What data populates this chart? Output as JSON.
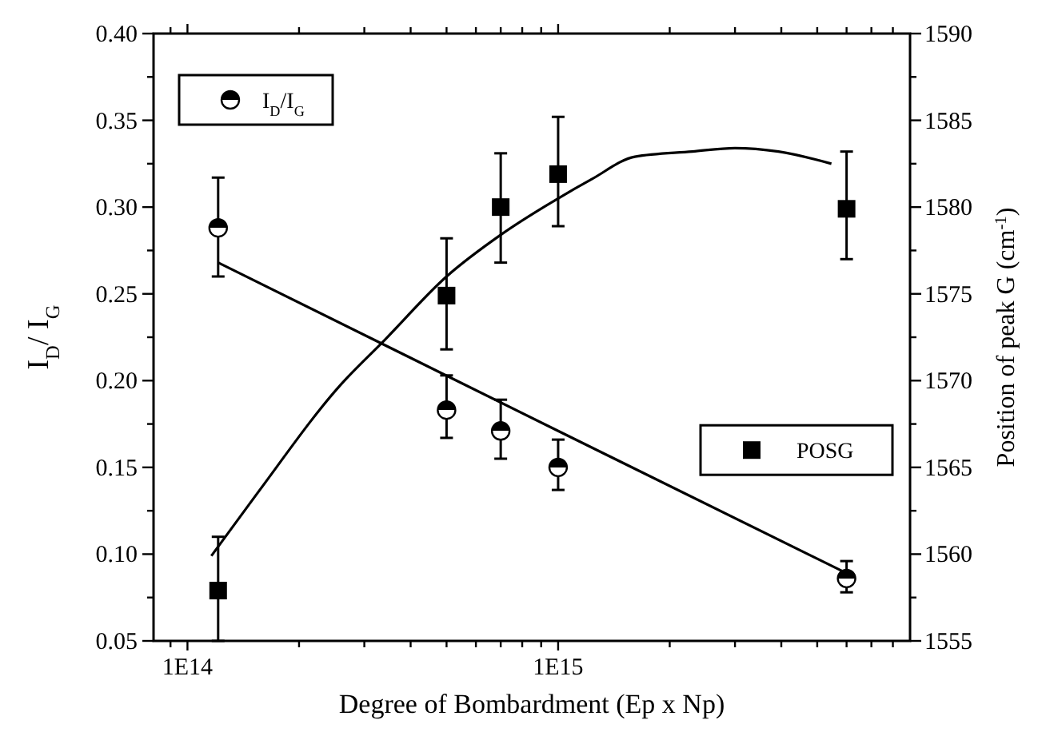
{
  "chart_data": {
    "type": "scatter",
    "xlabel": "Degree of Bombardment (Ep x Np)",
    "ylabel": "I$_{D}$/ I$_{G}$",
    "y2label": "Position of peak G (cm$^{-1}$)",
    "log": "x",
    "legend": "top left",
    "xlim": [
      81000000000000.0,
      8900000000000000.0
    ],
    "ylim": [
      0.05,
      0.4
    ],
    "y2lim": [
      1555,
      1590
    ],
    "xticks": [
      {
        "value": 90000000000000.0,
        "label": null
      },
      {
        "value": 100000000000000.0,
        "label": "1E14"
      },
      {
        "value": 200000000000000.0,
        "label": null
      },
      {
        "value": 300000000000000.0,
        "label": null
      },
      {
        "value": 400000000000000.0,
        "label": null
      },
      {
        "value": 500000000000000.0,
        "label": null
      },
      {
        "value": 600000000000000.0,
        "label": null
      },
      {
        "value": 700000000000000.0,
        "label": null
      },
      {
        "value": 800000000000000.0,
        "label": null
      },
      {
        "value": 900000000000000.0,
        "label": null
      },
      {
        "value": 1000000000000000.0,
        "label": "1E15"
      },
      {
        "value": 2000000000000000.0,
        "label": null
      },
      {
        "value": 3000000000000000.0,
        "label": null
      },
      {
        "value": 4000000000000000.0,
        "label": null
      },
      {
        "value": 5000000000000000.0,
        "label": null
      },
      {
        "value": 6000000000000000.0,
        "label": null
      },
      {
        "value": 7000000000000000.0,
        "label": null
      },
      {
        "value": 8000000000000000.0,
        "label": null
      }
    ],
    "yticks": [
      {
        "value": 0.05,
        "label": "0.05"
      },
      {
        "value": 0.075,
        "label": null
      },
      {
        "value": 0.1,
        "label": "0.10"
      },
      {
        "value": 0.125,
        "label": null
      },
      {
        "value": 0.15,
        "label": "0.15"
      },
      {
        "value": 0.175,
        "label": null
      },
      {
        "value": 0.2,
        "label": "0.20"
      },
      {
        "value": 0.225,
        "label": null
      },
      {
        "value": 0.25,
        "label": "0.25"
      },
      {
        "value": 0.275,
        "label": null
      },
      {
        "value": 0.3,
        "label": "0.30"
      },
      {
        "value": 0.325,
        "label": null
      },
      {
        "value": 0.35,
        "label": "0.35"
      },
      {
        "value": 0.375,
        "label": null
      },
      {
        "value": 0.4,
        "label": "0.40"
      }
    ],
    "y2ticks": [
      1555,
      {
        "value": 1557.5,
        "label": null
      },
      1560,
      {
        "value": 1562.5,
        "label": null
      },
      1565,
      {
        "value": 1567.5,
        "label": null
      },
      1570,
      {
        "value": 1572.5,
        "label": null
      },
      1575,
      {
        "value": 1577.5,
        "label": null
      },
      1580,
      {
        "value": 1582.5,
        "label": null
      },
      1585,
      {
        "value": 1587.5,
        "label": null
      },
      1590
    ],
    "series": [
      {
        "name": "I$_{D}$/I$_{G}$",
        "marker": "circle",
        "color": "#000000",
        "x": [
          121000000000000.0,
          500000000000000.0,
          700000000000000.0,
          1000000000000000.0,
          6000000000000000.0
        ],
        "values": [
          0.288,
          0.183,
          0.171,
          0.15,
          0.086
        ],
        "errors": [
          [
            0.26,
            0.317
          ],
          [
            0.167,
            0.203
          ],
          [
            0.155,
            0.189
          ],
          [
            0.137,
            0.166
          ],
          [
            0.078,
            0.096
          ]
        ]
      },
      {
        "type": "line",
        "marker": "none",
        "color": "#000000",
        "x": [
          121000000000000.0,
          1000000000000000.0,
          6000000000000000.0
        ],
        "values": [
          0.268,
          0.171,
          0.089
        ]
      },
      {
        "name": "POSG",
        "marker": "square",
        "axis": "y2",
        "color": "#000000",
        "x": [
          121000000000000.0,
          500000000000000.0,
          700000000000000.0,
          1000000000000000.0,
          6000000000000000.0
        ],
        "values": [
          1557.9,
          1574.9,
          1580,
          1581.9,
          1579.9
        ],
        "errors": [
          [
            1555,
            1561
          ],
          [
            1571.8,
            1578.2
          ],
          [
            1576.8,
            1583.1
          ],
          [
            1578.9,
            1585.2
          ],
          [
            1577,
            1583.2
          ]
        ]
      },
      {
        "type": "line",
        "marker": "none",
        "axis": "y2",
        "color": "#000000",
        "x": [
          116000000000000.0,
          153000000000000.0,
          260000000000000.0,
          339000000000000.0,
          500000000000000.0,
          700000000000000.0,
          1000000000000000.0,
          1230000000000000.0,
          1610000000000000.0,
          2300000000000000.0,
          3000000000000000.0,
          3930000000000000.0,
          5460000000000000.0
        ],
        "values": [
          1559.9,
          1563.4,
          1569.8,
          1572.3,
          1576,
          1578.4,
          1580.5,
          1581.6,
          1582.9,
          1583.2,
          1583.4,
          1583.2,
          1582.5
        ]
      }
    ]
  }
}
